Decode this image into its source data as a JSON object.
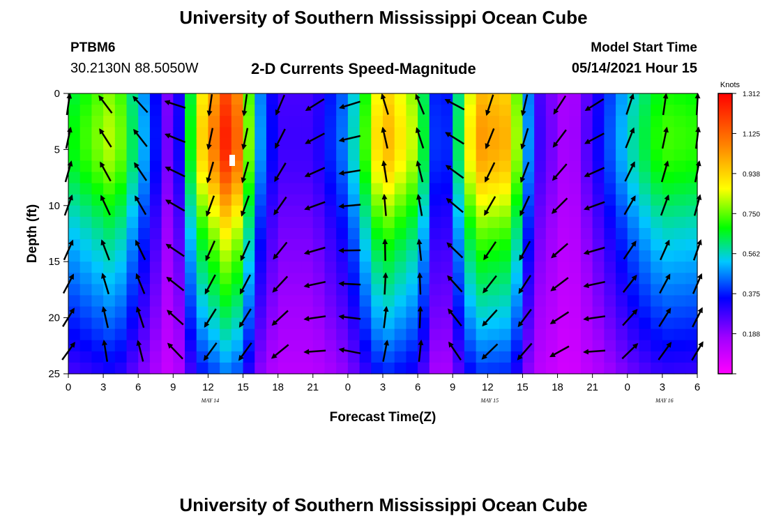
{
  "header": {
    "title": "University of Southern Mississippi Ocean Cube",
    "station_id": "PTBM6",
    "coordinates": "30.2130N  88.5050W",
    "chart_title": "2-D Currents Speed-Magnitude",
    "model_start_label": "Model Start Time",
    "model_start_value": "05/14/2021 Hour 15"
  },
  "footer": {
    "title": "University of Southern Mississippi Ocean Cube"
  },
  "chart_data": {
    "type": "heatmap",
    "title": "2-D Currents Speed-Magnitude",
    "xlabel": "Forecast Time(Z)",
    "ylabel": "Depth (ft)",
    "x_tick_labels": [
      "0",
      "3",
      "6",
      "9",
      "12",
      "15",
      "18",
      "21",
      "0",
      "3",
      "6",
      "9",
      "12",
      "15",
      "18",
      "21",
      "0",
      "3",
      "6"
    ],
    "x_range_hours": [
      0,
      54
    ],
    "date_labels": [
      {
        "text": "MAY 14",
        "hour": 12
      },
      {
        "text": "MAY 15",
        "hour": 36
      },
      {
        "text": "MAY 16",
        "hour": 51
      }
    ],
    "y_ticks": [
      0,
      5,
      10,
      15,
      20,
      25
    ],
    "ylim": [
      0,
      25
    ],
    "y_inverted": true,
    "colorbar": {
      "unit": "Knots",
      "tick_labels": [
        "1.312",
        "1.125",
        "0.938",
        "0.750",
        "0.562",
        "0.375",
        "0.188"
      ],
      "range": [
        0,
        1.312
      ],
      "colors": [
        "#ff00ff",
        "#a000ff",
        "#0000ff",
        "#00c8ff",
        "#00ff00",
        "#ffff00",
        "#ff8000",
        "#ff0000"
      ]
    },
    "surface_speed_by_hour": [
      {
        "hour": 0,
        "speed": 0.65
      },
      {
        "hour": 4,
        "speed": 0.82
      },
      {
        "hour": 7,
        "speed": 0.4
      },
      {
        "hour": 9,
        "speed": 0.12
      },
      {
        "hour": 11,
        "speed": 0.85
      },
      {
        "hour": 14,
        "speed": 1.22
      },
      {
        "hour": 16.5,
        "speed": 0.45
      },
      {
        "hour": 18,
        "speed": 0.25
      },
      {
        "hour": 21,
        "speed": 0.25
      },
      {
        "hour": 24,
        "speed": 0.45
      },
      {
        "hour": 27,
        "speed": 0.98
      },
      {
        "hour": 30,
        "speed": 0.78
      },
      {
        "hour": 32,
        "speed": 0.22
      },
      {
        "hour": 35,
        "speed": 1.0
      },
      {
        "hour": 38,
        "speed": 0.95
      },
      {
        "hour": 40,
        "speed": 0.28
      },
      {
        "hour": 43,
        "speed": 0.1
      },
      {
        "hour": 46,
        "speed": 0.35
      },
      {
        "hour": 49,
        "speed": 0.6
      },
      {
        "hour": 51,
        "speed": 0.72
      },
      {
        "hour": 54,
        "speed": 0.7
      }
    ],
    "vector_field": {
      "depths_ft": [
        1,
        4,
        7,
        10,
        14,
        17,
        20,
        23
      ],
      "hours": [
        0,
        3.2,
        6.2,
        9.2,
        12.2,
        15.2,
        18.2,
        21.2,
        24.2,
        27.2,
        30.2,
        33.2,
        36.2,
        39.2,
        42.2,
        45.2,
        48.2,
        51.2,
        54
      ],
      "direction_deg_by_hour": [
        20,
        335,
        330,
        300,
        200,
        200,
        215,
        250,
        265,
        355,
        350,
        310,
        210,
        205,
        225,
        250,
        30,
        20,
        15
      ],
      "sample_speed_knots_by_hour": [
        0.65,
        0.82,
        0.55,
        0.18,
        0.95,
        1.15,
        0.35,
        0.25,
        0.45,
        0.95,
        0.7,
        0.25,
        0.95,
        0.92,
        0.3,
        0.12,
        0.4,
        0.62,
        0.65
      ]
    }
  }
}
